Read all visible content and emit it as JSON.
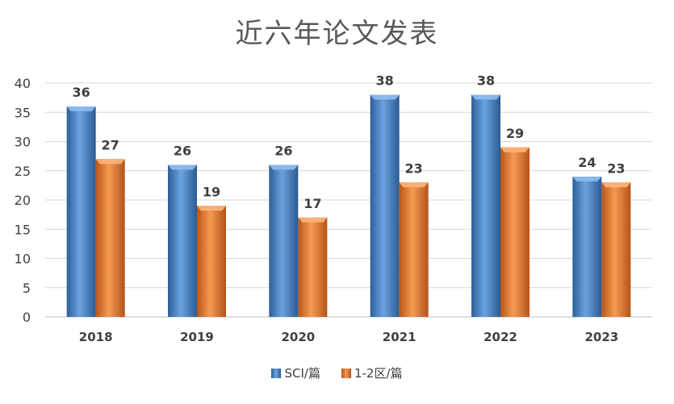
{
  "chart_data": {
    "type": "bar",
    "title": "近六年论文发表",
    "categories": [
      "2018",
      "2019",
      "2020",
      "2021",
      "2022",
      "2023"
    ],
    "series": [
      {
        "name": "SCI/篇",
        "values": [
          36,
          26,
          26,
          38,
          38,
          24
        ],
        "color": "#4a86c8"
      },
      {
        "name": "1-2区/篇",
        "values": [
          27,
          19,
          17,
          23,
          29,
          23
        ],
        "color": "#ed7d31"
      }
    ],
    "ylim": [
      0,
      40
    ],
    "yticks": [
      0,
      5,
      10,
      15,
      20,
      25,
      30,
      35,
      40
    ],
    "grid": true,
    "legend": "bottom"
  }
}
